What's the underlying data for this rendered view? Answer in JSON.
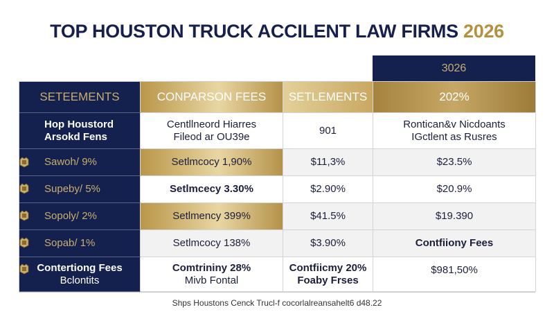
{
  "title": {
    "main": "TOP HOUSTON TRUCK ACCILENT LAW FIRMS",
    "year": "2026"
  },
  "top_year_cell": "3026",
  "headers": [
    "SETEEMENTS",
    "CONPARSON FEES",
    "SETLEMENTS",
    "202%"
  ],
  "subheader": {
    "col1": [
      "Hop Houstord",
      "Arsokd Fens"
    ],
    "col2": [
      "Centllneord Hiarres",
      "Fileod ar OU39e"
    ],
    "col3": "901",
    "col4": [
      "Rontican&v Nicdoants",
      "IGctlent as Rusres"
    ]
  },
  "rows": [
    {
      "label": "Sawoh/ 9%",
      "col2": "Setlmcocy 1,90%",
      "col3": "$11,3%",
      "col4": "$23.5%"
    },
    {
      "label": "Supeby/ 5%",
      "col2": "Setlmcecy 3.30%",
      "col3": "$2.90%",
      "col4": "$20.9%"
    },
    {
      "label": "Sopoly/ 2%",
      "col2": "Setlmency 399%",
      "col3": "$41.5%",
      "col4": "$19.390"
    },
    {
      "label": "Sopab/ 1%",
      "col2": "Setlmcocy 138%",
      "col3": "$3.90%",
      "col4": "Contfiiony Fees"
    }
  ],
  "last_row": {
    "label": [
      "Contertiong Fees",
      "Bclontits"
    ],
    "col2": [
      "Comtrininy 28%",
      "Mivb Fontal"
    ],
    "col3": [
      "Contfiicmy 20%",
      "Foaby Frses"
    ],
    "col4": "$981,50%"
  },
  "footer": "Shps Houstons Cenck Trucl-f cocorlalreansahelt6 d48.22",
  "colors": {
    "navy": "#14214f",
    "gold": "#b99649"
  },
  "icons": [
    "crest-icon"
  ]
}
